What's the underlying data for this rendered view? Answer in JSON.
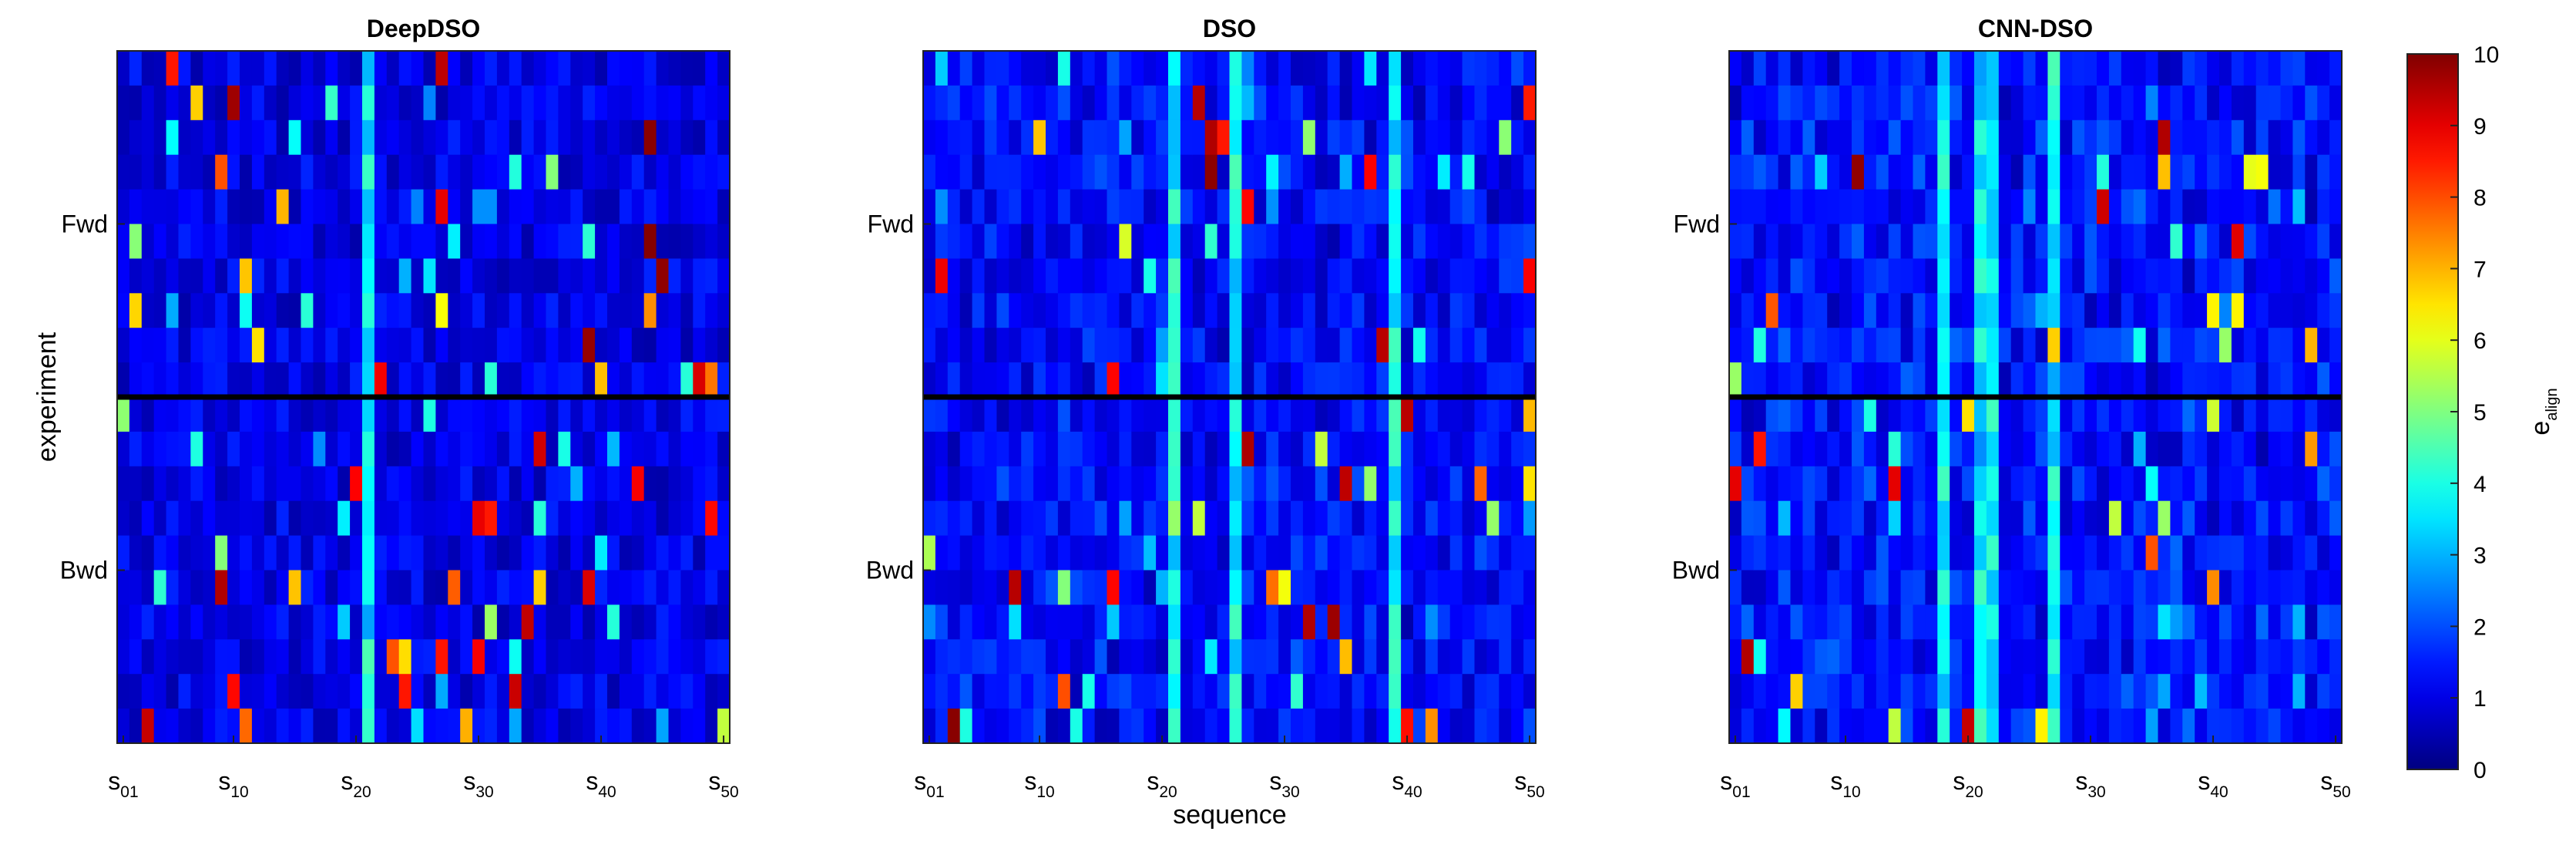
{
  "chart_data": {
    "type": "heatmap",
    "panels": [
      {
        "title": "DeepDSO",
        "seed": 11,
        "bright_cols": [
          21
        ],
        "method_bias": 0.0
      },
      {
        "title": "DSO",
        "seed": 23,
        "bright_cols": [
          21,
          26,
          39
        ],
        "method_bias": 0.6
      },
      {
        "title": "CNN-DSO",
        "seed": 37,
        "bright_cols": [
          18,
          21,
          22,
          27
        ],
        "method_bias": 0.8
      }
    ],
    "x_ticks": [
      {
        "base": "s",
        "sub": "01"
      },
      {
        "base": "s",
        "sub": "10"
      },
      {
        "base": "s",
        "sub": "20"
      },
      {
        "base": "s",
        "sub": "30"
      },
      {
        "base": "s",
        "sub": "40"
      },
      {
        "base": "s",
        "sub": "50"
      }
    ],
    "x_tick_index": [
      1,
      10,
      20,
      30,
      40,
      50
    ],
    "y_ticks": [
      "Fwd",
      "Bwd"
    ],
    "xlabel": "sequence",
    "ylabel": "experiment",
    "colorbar": {
      "label_base": "e",
      "label_sub": "align",
      "min": 0,
      "max": 10,
      "ticks": [
        0,
        1,
        2,
        3,
        4,
        5,
        6,
        7,
        8,
        9,
        10
      ],
      "colormap": "jet"
    }
  }
}
